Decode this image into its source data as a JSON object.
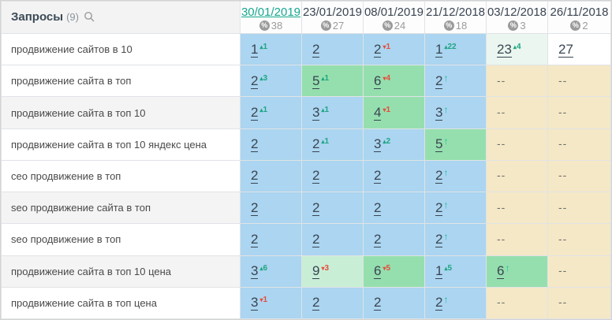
{
  "widget": {
    "title": "Запросы",
    "count": "(9)",
    "search_icon": "magnifier"
  },
  "colors": {
    "cell_blue": "#abd5f0",
    "cell_green": "#95dfae",
    "cell_light_green": "#c9eed6",
    "cell_pale_green": "#eaf6ef",
    "cell_tan": "#f5e8c6",
    "cell_white": "#ffffff",
    "delta_up": "#1fa583",
    "delta_down": "#e74c3c",
    "arrow_up": "#1abc9c",
    "active_date": "#17a88e",
    "rank_text": "#3a4552"
  },
  "columns": [
    {
      "date": "30/01/2019",
      "percent": "38",
      "active": true
    },
    {
      "date": "23/01/2019",
      "percent": "27",
      "active": false
    },
    {
      "date": "08/01/2019",
      "percent": "24",
      "active": false
    },
    {
      "date": "21/12/2018",
      "percent": "18",
      "active": false
    },
    {
      "date": "03/12/2018",
      "percent": "3",
      "active": false
    },
    {
      "date": "26/11/2018",
      "percent": "2",
      "active": false
    }
  ],
  "rows": [
    {
      "query": "продвижение сайтов в 10",
      "shaded": false,
      "cells": [
        {
          "value": "1",
          "delta": "1",
          "dir": "up",
          "bg": "blue"
        },
        {
          "value": "2",
          "bg": "blue"
        },
        {
          "value": "2",
          "delta": "1",
          "dir": "down",
          "bg": "blue"
        },
        {
          "value": "1",
          "delta": "22",
          "dir": "up",
          "bg": "blue"
        },
        {
          "value": "23",
          "delta": "4",
          "dir": "up",
          "bg": "paleGreen"
        },
        {
          "value": "27",
          "bg": "white"
        }
      ]
    },
    {
      "query": "продвижение сайта в топ",
      "shaded": false,
      "cells": [
        {
          "value": "2",
          "delta": "3",
          "dir": "up",
          "bg": "blue"
        },
        {
          "value": "5",
          "delta": "1",
          "dir": "up",
          "bg": "green"
        },
        {
          "value": "6",
          "delta": "4",
          "dir": "down",
          "bg": "green"
        },
        {
          "value": "2",
          "dir": "arrow",
          "bg": "blue"
        },
        {
          "value": "--",
          "bg": "tan"
        },
        {
          "value": "--",
          "bg": "tan"
        }
      ]
    },
    {
      "query": "продвижение сайта в топ 10",
      "shaded": true,
      "cells": [
        {
          "value": "2",
          "delta": "1",
          "dir": "up",
          "bg": "blue"
        },
        {
          "value": "3",
          "delta": "1",
          "dir": "up",
          "bg": "blue"
        },
        {
          "value": "4",
          "delta": "1",
          "dir": "down",
          "bg": "green"
        },
        {
          "value": "3",
          "dir": "arrow",
          "bg": "blue"
        },
        {
          "value": "--",
          "bg": "tan"
        },
        {
          "value": "--",
          "bg": "tan"
        }
      ]
    },
    {
      "query": "продвижение сайта в топ 10 яндекс цена",
      "shaded": false,
      "cells": [
        {
          "value": "2",
          "bg": "blue"
        },
        {
          "value": "2",
          "delta": "1",
          "dir": "up",
          "bg": "blue"
        },
        {
          "value": "3",
          "delta": "2",
          "dir": "up",
          "bg": "blue"
        },
        {
          "value": "5",
          "dir": "arrow",
          "bg": "green"
        },
        {
          "value": "--",
          "bg": "tan"
        },
        {
          "value": "--",
          "bg": "tan"
        }
      ]
    },
    {
      "query": "сео продвижение в топ",
      "shaded": false,
      "cells": [
        {
          "value": "2",
          "bg": "blue"
        },
        {
          "value": "2",
          "bg": "blue"
        },
        {
          "value": "2",
          "bg": "blue"
        },
        {
          "value": "2",
          "dir": "arrow",
          "bg": "blue"
        },
        {
          "value": "--",
          "bg": "tan"
        },
        {
          "value": "--",
          "bg": "tan"
        }
      ]
    },
    {
      "query": "seo продвижение сайта в топ",
      "shaded": true,
      "cells": [
        {
          "value": "2",
          "bg": "blue"
        },
        {
          "value": "2",
          "bg": "blue"
        },
        {
          "value": "2",
          "bg": "blue"
        },
        {
          "value": "2",
          "dir": "arrow",
          "bg": "blue"
        },
        {
          "value": "--",
          "bg": "tan"
        },
        {
          "value": "--",
          "bg": "tan"
        }
      ]
    },
    {
      "query": "seo продвижение в топ",
      "shaded": false,
      "cells": [
        {
          "value": "2",
          "bg": "blue"
        },
        {
          "value": "2",
          "bg": "blue"
        },
        {
          "value": "2",
          "bg": "blue"
        },
        {
          "value": "2",
          "dir": "arrow",
          "bg": "blue"
        },
        {
          "value": "--",
          "bg": "tan"
        },
        {
          "value": "--",
          "bg": "tan"
        }
      ]
    },
    {
      "query": "продвижение сайта в топ 10 цена",
      "shaded": true,
      "cells": [
        {
          "value": "3",
          "delta": "6",
          "dir": "up",
          "bg": "blue"
        },
        {
          "value": "9",
          "delta": "3",
          "dir": "down",
          "bg": "lightGreen"
        },
        {
          "value": "6",
          "delta": "5",
          "dir": "down",
          "bg": "green"
        },
        {
          "value": "1",
          "delta": "5",
          "dir": "up",
          "bg": "blue"
        },
        {
          "value": "6",
          "dir": "arrow",
          "bg": "green"
        },
        {
          "value": "--",
          "bg": "tan"
        }
      ]
    },
    {
      "query": "продвижение сайта в топ цена",
      "shaded": false,
      "cells": [
        {
          "value": "3",
          "delta": "1",
          "dir": "down",
          "bg": "blue"
        },
        {
          "value": "2",
          "bg": "blue"
        },
        {
          "value": "2",
          "bg": "blue"
        },
        {
          "value": "2",
          "dir": "arrow",
          "bg": "blue"
        },
        {
          "value": "--",
          "bg": "tan"
        },
        {
          "value": "--",
          "bg": "tan"
        }
      ]
    }
  ]
}
